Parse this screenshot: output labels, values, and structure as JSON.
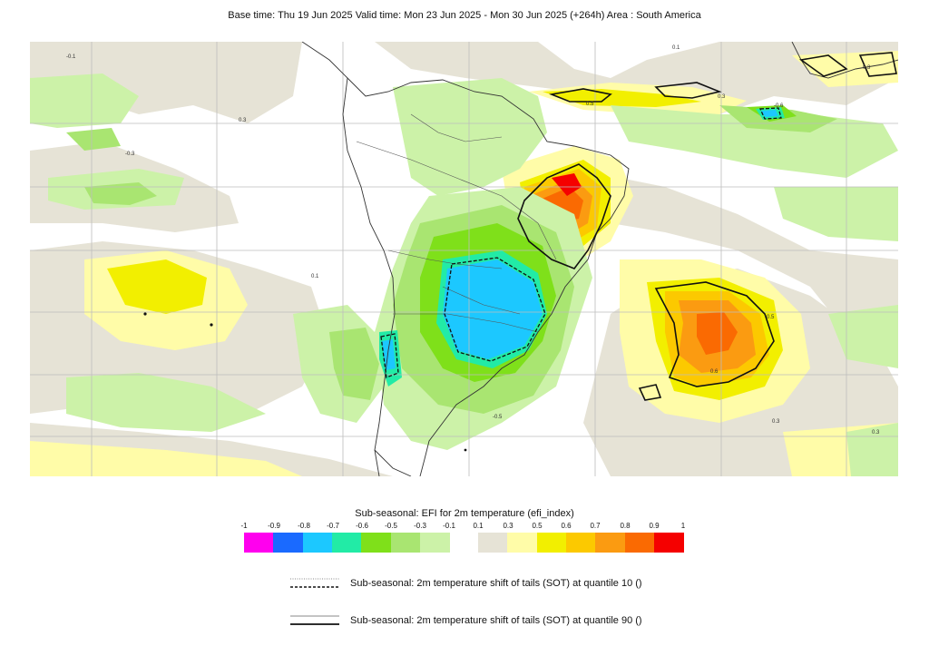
{
  "header": {
    "title": "Base time: Thu 19 Jun 2025 Valid time: Mon 23 Jun 2025 - Mon 30 Jun 2025 (+264h) Area : South America"
  },
  "map": {
    "contour_labels": [
      "-0.1",
      "0.1",
      "0.3",
      "-0.3",
      "0.5",
      "-0.5",
      "0.6",
      "0.7",
      "-0.6"
    ]
  },
  "legend": {
    "title": "Sub-seasonal: EFI for 2m temperature (efi_index)",
    "neg_ticks": [
      "-1",
      "-0.9",
      "-0.8",
      "-0.7",
      "-0.6",
      "-0.5",
      "-0.3",
      "-0.1"
    ],
    "pos_ticks": [
      "0.1",
      "0.3",
      "0.5",
      "0.6",
      "0.7",
      "0.8",
      "0.9",
      "1"
    ],
    "neg_colors": [
      "#ff00ee",
      "#1a6aff",
      "#1cc8ff",
      "#22eba6",
      "#7fe01a",
      "#a9e571",
      "#ccf2a8"
    ],
    "pos_colors": [
      "#e6e3d6",
      "#fffca8",
      "#f2ef00",
      "#fcc900",
      "#fb9b11",
      "#fa6a02",
      "#f50000"
    ]
  },
  "sot": {
    "q10_label": "Sub-seasonal: 2m temperature shift of tails (SOT) at quantile 10 ()",
    "q90_label": "Sub-seasonal: 2m temperature shift of tails (SOT) at quantile 90 ()"
  }
}
